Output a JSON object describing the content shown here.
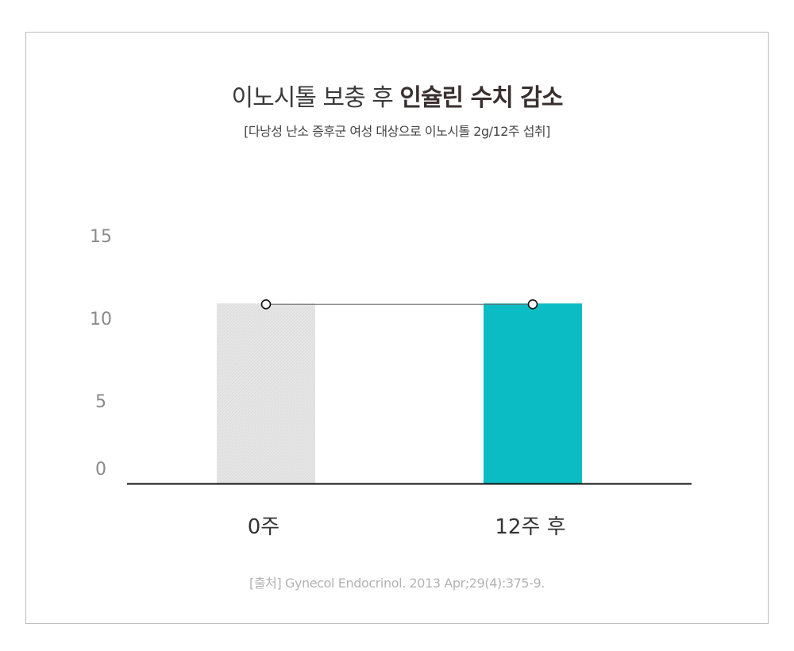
{
  "header": {
    "title_regular": "이노시톨 보충 후 ",
    "title_bold": "인슐린 수치 감소",
    "subtitle": "[다낭성 난소 증후군 여성 대상으로 이노시톨 2g/12주 섭취]"
  },
  "footer": {
    "source": "[출처] Gynecol Endocrinol. 2013 Apr;29(4):375-9."
  },
  "colors": {
    "bar_baseline": "#e6e6e6",
    "bar_after": "#0bbcc4",
    "axis": "#111111",
    "line": "#666666",
    "tick_text": "#8a8a8a",
    "category_text": "#333333"
  },
  "chart_data": {
    "type": "bar",
    "categories": [
      "0주",
      "12주 후"
    ],
    "values": [
      10.9,
      10.9
    ],
    "ylim": [
      0,
      15
    ],
    "yticks": [
      0,
      5,
      10,
      15
    ],
    "ytick_labels": [
      "0",
      "5",
      "10",
      "15"
    ],
    "connector_line": true,
    "grid": false,
    "xlabel": "",
    "ylabel": ""
  }
}
